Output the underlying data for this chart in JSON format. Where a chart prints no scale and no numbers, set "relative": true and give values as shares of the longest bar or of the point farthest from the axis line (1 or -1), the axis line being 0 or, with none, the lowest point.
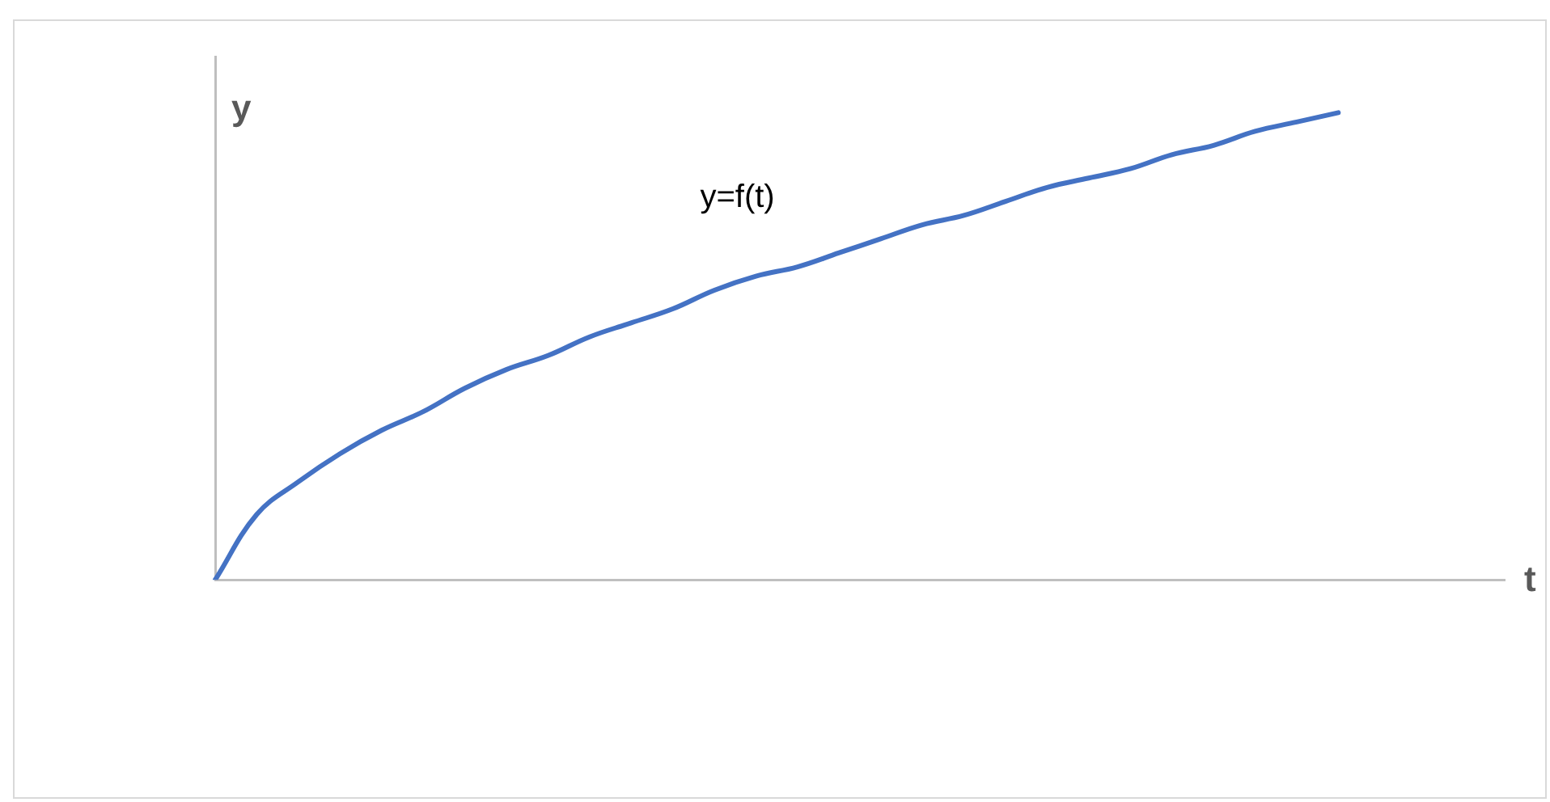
{
  "chart_data": {
    "type": "line",
    "relative": true,
    "xlabel": "t",
    "ylabel": "y",
    "annotations": [
      "y=f(t)"
    ],
    "grid": false,
    "legend": false,
    "marker": "none",
    "line_style": "solid",
    "categories": [
      null,
      null,
      null,
      null,
      null,
      null,
      null,
      null,
      null,
      null,
      null,
      null,
      null,
      null,
      null,
      null,
      null,
      null,
      null,
      null,
      null,
      null,
      null,
      null,
      null,
      null,
      null,
      null,
      null,
      null,
      null,
      null
    ],
    "series": [
      {
        "color": "#4472c4",
        "values": [
          0,
          0.14,
          0.21,
          0.27,
          0.32,
          0.36,
          0.41,
          0.45,
          0.48,
          0.52,
          0.55,
          0.58,
          0.62,
          0.65,
          0.67,
          0.7,
          0.73,
          0.76,
          0.78,
          0.81,
          0.84,
          0.86,
          0.88,
          0.91,
          0.93,
          0.96,
          0.98,
          1,
          null,
          null,
          null,
          null
        ]
      }
    ]
  }
}
